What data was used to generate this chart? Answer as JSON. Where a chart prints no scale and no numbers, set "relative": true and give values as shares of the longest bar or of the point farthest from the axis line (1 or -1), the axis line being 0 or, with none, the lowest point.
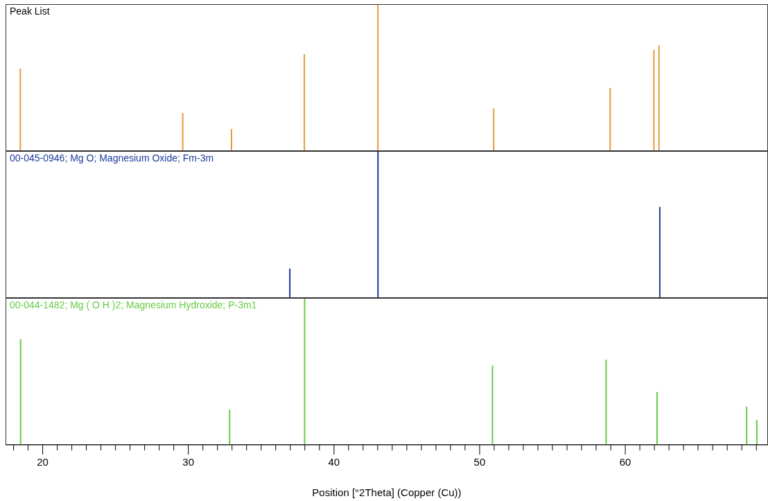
{
  "chart_data": [
    {
      "type": "bar",
      "title": "Peak List",
      "relative": true,
      "xlim": [
        17.45,
        69.8
      ],
      "tick_labels": false,
      "grid": false,
      "legend": false,
      "series": [
        {
          "color": "#e59a3a",
          "x": [
            18.45,
            29.6,
            32.95,
            37.95,
            43.0,
            50.95,
            58.95,
            61.95,
            62.3
          ],
          "values": [
            0.56,
            0.26,
            0.15,
            0.66,
            1,
            0.29,
            0.43,
            0.69,
            0.72
          ]
        }
      ]
    },
    {
      "type": "bar",
      "relative": true,
      "xlim": [
        17.45,
        69.8
      ],
      "tick_labels": false,
      "grid": false,
      "legend": false,
      "series": [
        {
          "name": "00-045-0946; Mg O; Magnesium Oxide; Fm-3m",
          "color": "#1a3a9c",
          "x": [
            36.95,
            43.0,
            62.35
          ],
          "values": [
            0.2,
            1,
            0.62
          ]
        }
      ]
    },
    {
      "type": "bar",
      "relative": true,
      "xlim": [
        17.45,
        69.8
      ],
      "tick_labels": "x",
      "grid": false,
      "legend": false,
      "xlabel": "Position [°2Theta] (Copper (Cu))",
      "xticks": [
        {
          "value": 18,
          "label": null
        },
        {
          "value": 19,
          "label": null
        },
        20,
        {
          "value": 21,
          "label": null
        },
        {
          "value": 22,
          "label": null
        },
        {
          "value": 23,
          "label": null
        },
        {
          "value": 24,
          "label": null
        },
        {
          "value": 25,
          "label": null
        },
        {
          "value": 26,
          "label": null
        },
        {
          "value": 27,
          "label": null
        },
        {
          "value": 28,
          "label": null
        },
        {
          "value": 29,
          "label": null
        },
        30,
        {
          "value": 31,
          "label": null
        },
        {
          "value": 32,
          "label": null
        },
        {
          "value": 33,
          "label": null
        },
        {
          "value": 34,
          "label": null
        },
        {
          "value": 35,
          "label": null
        },
        {
          "value": 36,
          "label": null
        },
        {
          "value": 37,
          "label": null
        },
        {
          "value": 38,
          "label": null
        },
        {
          "value": 39,
          "label": null
        },
        40,
        {
          "value": 41,
          "label": null
        },
        {
          "value": 42,
          "label": null
        },
        {
          "value": 43,
          "label": null
        },
        {
          "value": 44,
          "label": null
        },
        {
          "value": 45,
          "label": null
        },
        {
          "value": 46,
          "label": null
        },
        {
          "value": 47,
          "label": null
        },
        {
          "value": 48,
          "label": null
        },
        {
          "value": 49,
          "label": null
        },
        50,
        {
          "value": 51,
          "label": null
        },
        {
          "value": 52,
          "label": null
        },
        {
          "value": 53,
          "label": null
        },
        {
          "value": 54,
          "label": null
        },
        {
          "value": 55,
          "label": null
        },
        {
          "value": 56,
          "label": null
        },
        {
          "value": 57,
          "label": null
        },
        {
          "value": 58,
          "label": null
        },
        {
          "value": 59,
          "label": null
        },
        60,
        {
          "value": 61,
          "label": null
        },
        {
          "value": 62,
          "label": null
        },
        {
          "value": 63,
          "label": null
        },
        {
          "value": 64,
          "label": null
        },
        {
          "value": 65,
          "label": null
        },
        {
          "value": 66,
          "label": null
        },
        {
          "value": 67,
          "label": null
        },
        {
          "value": 68,
          "label": null
        },
        {
          "value": 69,
          "label": null
        }
      ],
      "series": [
        {
          "name": "00-044-1482; Mg ( O H )2; Magnesium Hydroxide; P-3m1",
          "color": "#66cc44",
          "x": [
            18.5,
            32.85,
            38.0,
            50.9,
            58.7,
            62.2,
            68.35,
            69.05
          ],
          "values": [
            0.72,
            0.24,
            1,
            0.54,
            0.58,
            0.36,
            0.26,
            0.17
          ]
        }
      ]
    }
  ]
}
